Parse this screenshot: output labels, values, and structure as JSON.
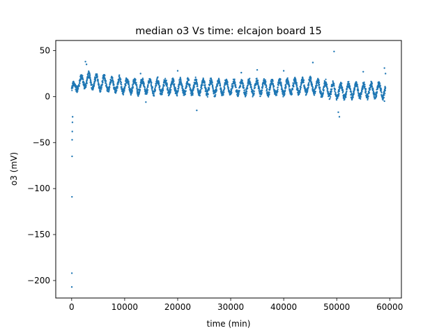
{
  "colors": {
    "series": "#1f77b4",
    "axes": "#000000",
    "background": "#ffffff"
  },
  "chart_data": {
    "type": "scatter",
    "title": "median o3 Vs time: elcajon board 15",
    "xlabel": "time (min)",
    "ylabel": "o3 (mV)",
    "xlim": [
      -3000,
      62200
    ],
    "ylim": [
      -219,
      61
    ],
    "grid": false,
    "xticks": [
      0,
      10000,
      20000,
      30000,
      40000,
      50000,
      60000
    ],
    "xtick_labels": [
      "0",
      "10000",
      "20000",
      "30000",
      "40000",
      "50000",
      "60000"
    ],
    "yticks": [
      50,
      0,
      -50,
      -100,
      -150,
      -200
    ],
    "ytick_labels": [
      "50",
      "0",
      "−50",
      "−100",
      "−150",
      "−200"
    ],
    "series": [
      {
        "name": "median o3",
        "x_range": [
          0,
          59200
        ],
        "oscillation": {
          "period_min": 1440,
          "amplitude_mV": 7,
          "noise_mV": 3
        },
        "baseline": [
          [
            0,
            8
          ],
          [
            2500,
            18
          ],
          [
            6000,
            14
          ],
          [
            12000,
            11
          ],
          [
            25000,
            10
          ],
          [
            40000,
            10
          ],
          [
            45000,
            12
          ],
          [
            47000,
            9
          ],
          [
            50000,
            6
          ],
          [
            55000,
            7
          ],
          [
            59200,
            6
          ]
        ],
        "outliers": [
          [
            30,
            -207
          ],
          [
            40,
            -192
          ],
          [
            60,
            -109
          ],
          [
            80,
            -65
          ],
          [
            90,
            -47
          ],
          [
            120,
            -38
          ],
          [
            150,
            -28
          ],
          [
            180,
            -22
          ],
          [
            2600,
            38
          ],
          [
            2800,
            35
          ],
          [
            13000,
            25
          ],
          [
            14000,
            -6
          ],
          [
            20000,
            28
          ],
          [
            23600,
            -15
          ],
          [
            32000,
            26
          ],
          [
            35000,
            29
          ],
          [
            40000,
            28
          ],
          [
            45500,
            37
          ],
          [
            49500,
            49
          ],
          [
            50300,
            -17
          ],
          [
            50500,
            -22
          ],
          [
            55000,
            27
          ],
          [
            59000,
            31
          ],
          [
            59200,
            25
          ],
          [
            59000,
            -5
          ]
        ]
      }
    ]
  }
}
